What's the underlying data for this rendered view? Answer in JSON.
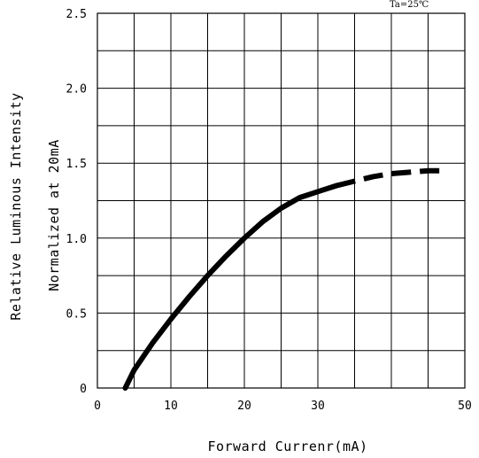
{
  "chart_data": {
    "type": "line",
    "title": "",
    "annotation": "Ta=25℃",
    "xlabel": "Forward Currenr(mA)",
    "ylabel": [
      "Relative Luminous Intensity",
      "Normalized at 20mA"
    ],
    "xlim": [
      0,
      50
    ],
    "ylim": [
      0,
      2.5
    ],
    "x_ticks": [
      0,
      10,
      20,
      30,
      50
    ],
    "x_tick_labels": [
      "0",
      "10",
      "20",
      "30",
      "50"
    ],
    "y_ticks": [
      0,
      0.5,
      1.0,
      1.5,
      2.0,
      2.5
    ],
    "y_tick_labels": [
      "0",
      "0.5",
      "1.0",
      "1.5",
      "2.0",
      "2.5"
    ],
    "grid": true,
    "grid_x_step": 5,
    "grid_y_step": 0.25,
    "series": [
      {
        "style": "solid",
        "x": [
          3.8,
          5,
          7.5,
          10,
          12.5,
          15,
          17.5,
          20,
          22.5,
          25,
          27.5,
          30,
          32.5
        ],
        "y": [
          0.0,
          0.12,
          0.3,
          0.46,
          0.61,
          0.75,
          0.88,
          1.0,
          1.11,
          1.2,
          1.27,
          1.31,
          1.35
        ]
      },
      {
        "style": "dashed",
        "x": [
          32.5,
          35,
          37.5,
          40,
          42.5,
          45,
          47.5
        ],
        "y": [
          1.35,
          1.38,
          1.41,
          1.43,
          1.44,
          1.45,
          1.45
        ]
      }
    ]
  }
}
